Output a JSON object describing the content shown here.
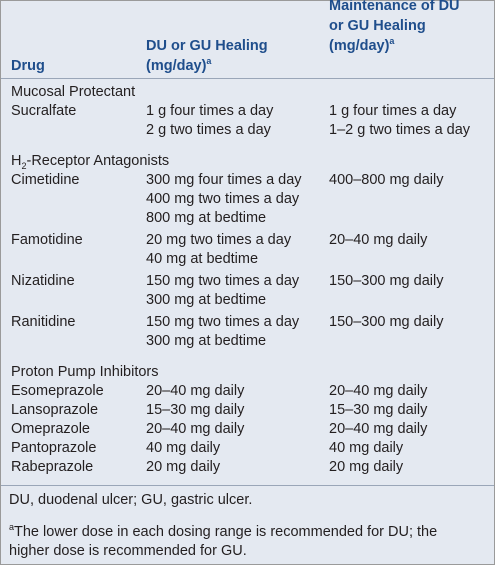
{
  "header": {
    "drug": "Drug",
    "healing": {
      "lines": [
        "DU or GU Healing",
        "(mg/day)"
      ],
      "sup": "a"
    },
    "maintenance": {
      "lines": [
        "Maintenance of DU",
        "or GU Healing",
        "(mg/day)"
      ],
      "sup": "a"
    }
  },
  "groups": [
    {
      "title": {
        "main": "Mucosal Protectant"
      },
      "rows": [
        {
          "drug": "Sucralfate",
          "healing": [
            "1 g four times a day",
            "2 g two times a day"
          ],
          "maintenance": [
            "1 g four times a day",
            "1–2 g two times a day"
          ]
        }
      ]
    },
    {
      "title": {
        "main": "H",
        "sub": "2",
        "rest": "-Receptor Antagonists"
      },
      "rows": [
        {
          "drug": "Cimetidine",
          "healing": [
            "300 mg four times a day",
            "400 mg two times a day",
            "800 mg at bedtime"
          ],
          "maintenance": [
            "400–800 mg daily"
          ]
        },
        {
          "drug": "Famotidine",
          "healing": [
            "20 mg two times a day",
            "40 mg at bedtime"
          ],
          "maintenance": [
            "20–40 mg daily"
          ]
        },
        {
          "drug": "Nizatidine",
          "healing": [
            "150 mg two times a day",
            "300 mg at bedtime"
          ],
          "maintenance": [
            "150–300 mg daily"
          ]
        },
        {
          "drug": "Ranitidine",
          "healing": [
            "150 mg two times a day",
            "300 mg at bedtime"
          ],
          "maintenance": [
            "150–300 mg daily"
          ]
        }
      ]
    },
    {
      "title": {
        "main": "Proton Pump Inhibitors"
      },
      "rows": [
        {
          "drug": "Esomeprazole",
          "healing": [
            "20–40 mg daily"
          ],
          "maintenance": [
            "20–40 mg daily"
          ]
        },
        {
          "drug": "Lansoprazole",
          "healing": [
            "15–30 mg daily"
          ],
          "maintenance": [
            "15–30 mg daily"
          ]
        },
        {
          "drug": "Omeprazole",
          "healing": [
            "20–40 mg daily"
          ],
          "maintenance": [
            "20–40 mg daily"
          ]
        },
        {
          "drug": "Pantoprazole",
          "healing": [
            "40 mg daily"
          ],
          "maintenance": [
            "40 mg daily"
          ]
        },
        {
          "drug": "Rabeprazole",
          "healing": [
            "20 mg daily"
          ],
          "maintenance": [
            "20 mg daily"
          ]
        }
      ]
    }
  ],
  "footnotes": {
    "abbrev": "DU, duodenal ulcer; GU, gastric ulcer.",
    "note": {
      "sup": "a",
      "lines": [
        "The lower dose in each dosing range is recommended for DU; the",
        "higher dose is recommended for GU."
      ]
    }
  }
}
